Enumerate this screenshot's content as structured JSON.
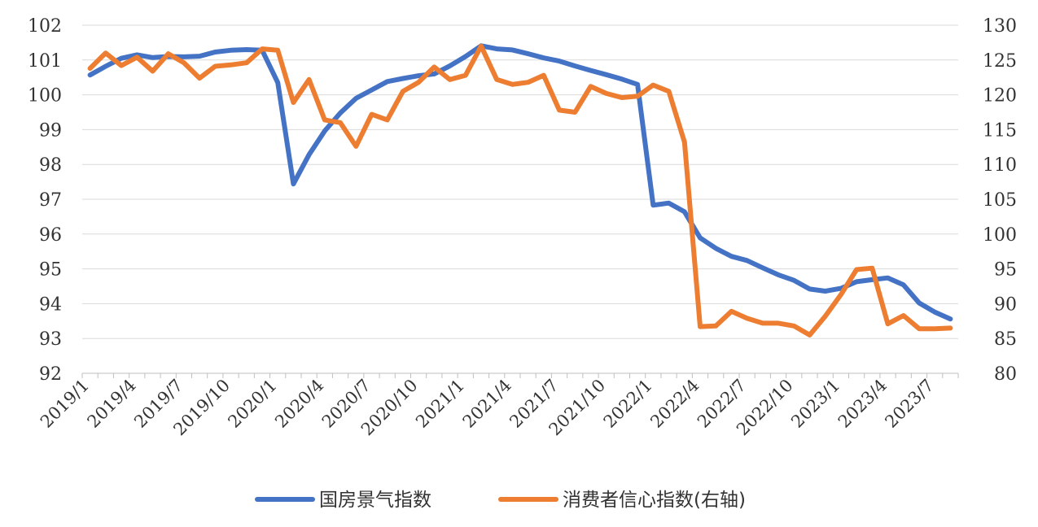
{
  "chart_data": {
    "type": "line",
    "title": "",
    "xlabel": "",
    "ylabel": "",
    "y_left": {
      "min": 92,
      "max": 102,
      "step": 1,
      "ticks": [
        "92",
        "93",
        "94",
        "95",
        "96",
        "97",
        "98",
        "99",
        "100",
        "101",
        "102"
      ]
    },
    "y_right": {
      "min": 80,
      "max": 130,
      "step": 5,
      "ticks": [
        "80",
        "85",
        "90",
        "95",
        "100",
        "105",
        "110",
        "115",
        "120",
        "125",
        "130"
      ]
    },
    "x_labels": [
      "2019/1",
      "2019/4",
      "2019/7",
      "2019/10",
      "2020/1",
      "2020/4",
      "2020/7",
      "2020/10",
      "2021/1",
      "2021/4",
      "2021/7",
      "2021/10",
      "2022/1",
      "2022/4",
      "2022/7",
      "2022/10",
      "2023/1",
      "2023/4",
      "2023/7"
    ],
    "grid": "horizontal",
    "legend_position": "bottom",
    "series": [
      {
        "name": "国房景气指数",
        "axis": "left",
        "color": "#4472C4",
        "values": [
          100.57,
          100.82,
          101.05,
          101.15,
          101.07,
          101.1,
          101.09,
          101.11,
          101.23,
          101.28,
          101.3,
          101.28,
          100.35,
          97.44,
          98.28,
          98.96,
          99.48,
          99.9,
          100.14,
          100.38,
          100.47,
          100.55,
          100.6,
          100.83,
          101.1,
          101.41,
          101.32,
          101.29,
          101.18,
          101.06,
          100.97,
          100.83,
          100.7,
          100.58,
          100.45,
          100.3,
          96.83,
          96.89,
          96.64,
          95.89,
          95.59,
          95.36,
          95.24,
          95.03,
          94.83,
          94.67,
          94.42,
          94.36,
          94.44,
          94.63,
          94.69,
          94.74,
          94.54,
          94.02,
          93.76,
          93.56
        ]
      },
      {
        "name": "消费者信心指数(右轴)",
        "axis": "right",
        "color": "#ED7D31",
        "values": [
          123.8,
          126.0,
          124.2,
          125.4,
          123.4,
          125.9,
          124.6,
          122.4,
          124.1,
          124.3,
          124.6,
          126.6,
          126.4,
          118.9,
          122.2,
          116.4,
          116.0,
          112.6,
          117.2,
          116.4,
          120.5,
          121.8,
          124.0,
          122.2,
          122.8,
          127.0,
          122.2,
          121.5,
          121.8,
          122.8,
          117.8,
          117.5,
          121.2,
          120.2,
          119.6,
          119.8,
          121.4,
          120.5,
          113.2,
          86.7,
          86.8,
          88.9,
          87.9,
          87.2,
          87.2,
          86.8,
          85.5,
          88.2,
          91.3,
          94.9,
          95.1,
          87.1,
          88.3,
          86.4,
          86.4,
          86.5
        ]
      }
    ]
  }
}
